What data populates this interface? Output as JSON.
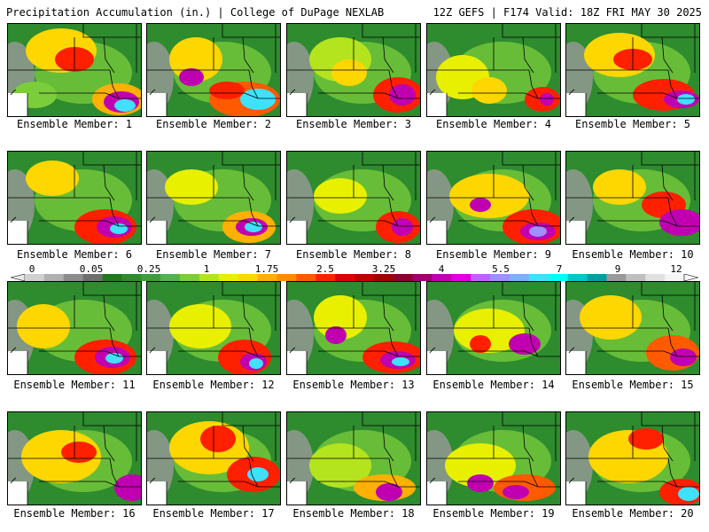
{
  "header": {
    "left": "Precipitation Accumulation (in.) | College of DuPage NEXLAB",
    "right": "12Z GEFS | F174 Valid: 18Z FRI MAY 30 2025"
  },
  "colorbar": {
    "tick_labels": [
      "0",
      "0.05",
      "0.25",
      "1",
      "1.75",
      "2.5",
      "3.25",
      "4",
      "5.5",
      "7",
      "9",
      "12"
    ],
    "colors": [
      "#d0d0d0",
      "#b0b0b0",
      "#8c8c8c",
      "#6e6e6e",
      "#1f7a1f",
      "#2e8b2e",
      "#3c9d3c",
      "#52b352",
      "#7ccd3c",
      "#b4e41e",
      "#e8f000",
      "#ffd700",
      "#ffb000",
      "#ff8c00",
      "#ff5a00",
      "#ff2000",
      "#e00000",
      "#c00000",
      "#a00000",
      "#8b0030",
      "#a00070",
      "#c000b0",
      "#e000e0",
      "#c060ff",
      "#9f8fff",
      "#7ab0ff",
      "#40e0ff",
      "#00ffff",
      "#00c8c8",
      "#00a0a0",
      "#9a9a9a",
      "#bfbfbf",
      "#e0e0e0",
      "#f5f5f5"
    ]
  },
  "members": [
    {
      "label": "Ensemble Member: 1"
    },
    {
      "label": "Ensemble Member: 2"
    },
    {
      "label": "Ensemble Member: 3"
    },
    {
      "label": "Ensemble Member: 4"
    },
    {
      "label": "Ensemble Member: 5"
    },
    {
      "label": "Ensemble Member: 6"
    },
    {
      "label": "Ensemble Member: 7"
    },
    {
      "label": "Ensemble Member: 8"
    },
    {
      "label": "Ensemble Member: 9"
    },
    {
      "label": "Ensemble Member: 10"
    },
    {
      "label": "Ensemble Member: 11"
    },
    {
      "label": "Ensemble Member: 12"
    },
    {
      "label": "Ensemble Member: 13"
    },
    {
      "label": "Ensemble Member: 14"
    },
    {
      "label": "Ensemble Member: 15"
    },
    {
      "label": "Ensemble Member: 16"
    },
    {
      "label": "Ensemble Member: 17"
    },
    {
      "label": "Ensemble Member: 18"
    },
    {
      "label": "Ensemble Member: 19"
    },
    {
      "label": "Ensemble Member: 20"
    }
  ]
}
